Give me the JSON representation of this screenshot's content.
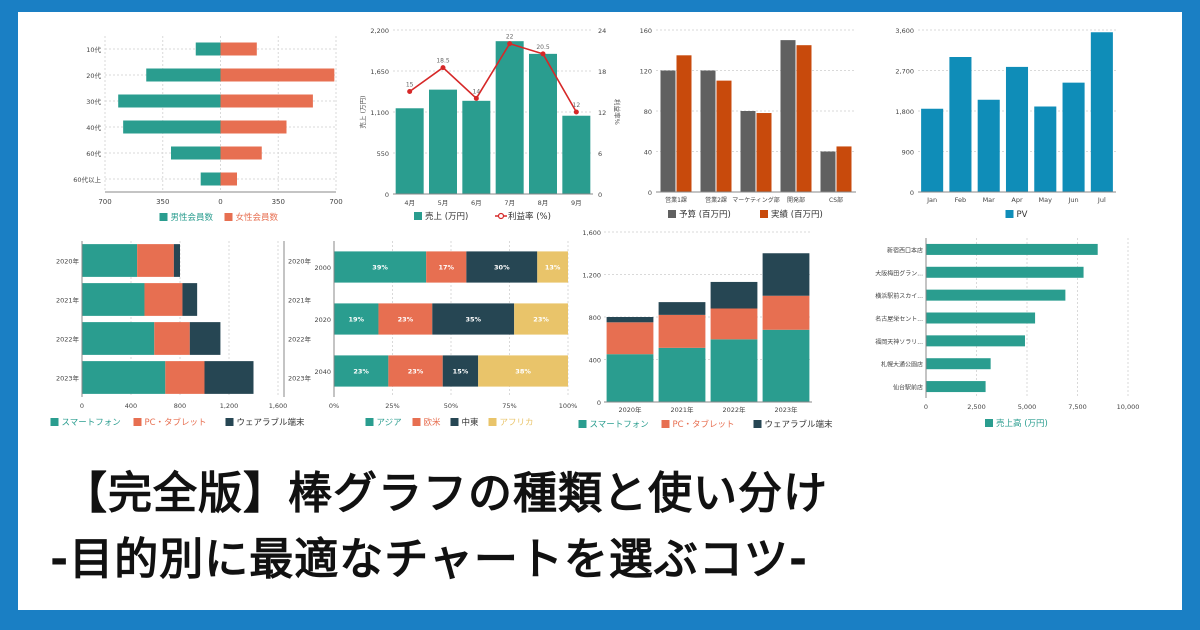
{
  "title": {
    "line1": "【完全版】棒グラフの種類と使い分け",
    "line2": "-目的別に最適なチャートを選ぶコツ-"
  },
  "colors": {
    "teal": "#2a9d8f",
    "coral": "#e76f51",
    "navy": "#264653",
    "sand": "#e9c46a",
    "gray": "#606060",
    "orange": "#c84a0c",
    "blue": "#0f8db8",
    "red": "#d62828",
    "frame": "#1a7fc4"
  },
  "chart_data": [
    {
      "id": "c1",
      "type": "bar",
      "orientation": "horizontal-diverging",
      "categories": [
        "10代",
        "20代",
        "30代",
        "40代",
        "60代",
        "60代以上"
      ],
      "series": [
        {
          "name": "男性会員数",
          "values": [
            150,
            450,
            620,
            590,
            300,
            120
          ]
        },
        {
          "name": "女性会員数",
          "values": [
            220,
            690,
            560,
            400,
            250,
            100
          ]
        }
      ],
      "xlim": [
        -700,
        700
      ],
      "xticks": [
        "700",
        "350",
        "0",
        "350",
        "700"
      ]
    },
    {
      "id": "c2",
      "type": "bar",
      "combo": "bar+line",
      "categories": [
        "4月",
        "5月",
        "6月",
        "7月",
        "8月",
        "9月"
      ],
      "series": [
        {
          "name": "売上 (万円)",
          "type": "bar",
          "values": [
            1150,
            1400,
            1250,
            2050,
            1880,
            1050
          ]
        },
        {
          "name": "利益率 (%)",
          "type": "line",
          "values": [
            15,
            18.5,
            14,
            22,
            20.5,
            12
          ]
        }
      ],
      "point_labels": [
        "15",
        "18.5",
        "14",
        "22",
        "20.5",
        "12"
      ],
      "ylabel": "売上 (万円)",
      "y2label": "利益率%",
      "ylim": [
        0,
        2200
      ],
      "y2lim": [
        0,
        24
      ],
      "yticks": [
        "0",
        "550",
        "1,100",
        "1,650",
        "2,200"
      ],
      "y2ticks": [
        "0",
        "6",
        "12",
        "18",
        "24"
      ]
    },
    {
      "id": "c3",
      "type": "bar",
      "categories": [
        "営業1課",
        "営業2課",
        "マーケティング部",
        "開発部",
        "CS部"
      ],
      "series": [
        {
          "name": "予算 (百万円)",
          "values": [
            120,
            120,
            80,
            150,
            40
          ]
        },
        {
          "name": "実績 (百万円)",
          "values": [
            135,
            110,
            78,
            145,
            45
          ]
        }
      ],
      "ylim": [
        0,
        160
      ],
      "yticks": [
        "0",
        "40",
        "80",
        "120",
        "160"
      ]
    },
    {
      "id": "c4",
      "type": "bar",
      "categories": [
        "Jan",
        "Feb",
        "Mar",
        "Apr",
        "May",
        "Jun",
        "Jul"
      ],
      "series": [
        {
          "name": "PV",
          "values": [
            1850,
            3000,
            2050,
            2780,
            1900,
            2430,
            3550
          ]
        }
      ],
      "ylim": [
        0,
        3600
      ],
      "yticks": [
        "0",
        "900",
        "1,800",
        "2,700",
        "3,600"
      ]
    },
    {
      "id": "c5",
      "type": "bar",
      "orientation": "horizontal-stacked",
      "categories": [
        "2020年",
        "2021年",
        "2022年",
        "2023年"
      ],
      "series": [
        {
          "name": "スマートフォン",
          "values": [
            450,
            510,
            590,
            680
          ]
        },
        {
          "name": "PC・タブレット",
          "values": [
            300,
            310,
            290,
            320
          ]
        },
        {
          "name": "ウェアラブル端末",
          "values": [
            50,
            120,
            250,
            400
          ]
        }
      ],
      "xlim": [
        0,
        1600
      ],
      "xticks": [
        "0",
        "400",
        "800",
        "1,200",
        "1,600"
      ]
    },
    {
      "id": "c6",
      "type": "bar",
      "orientation": "horizontal-100-stacked",
      "categories": [
        "2000",
        "2020",
        "2040"
      ],
      "series": [
        {
          "name": "アジア",
          "values": [
            39,
            19,
            23
          ]
        },
        {
          "name": "欧米",
          "values": [
            17,
            23,
            23
          ]
        },
        {
          "name": "中東",
          "values": [
            30,
            35,
            15
          ]
        },
        {
          "name": "アフリカ",
          "values": [
            13,
            23,
            38
          ]
        }
      ],
      "value_labels": [
        [
          "39%",
          "17%",
          "30%",
          "13%"
        ],
        [
          "19%",
          "23%",
          "35%",
          "23%"
        ],
        [
          "23%",
          "23%",
          "15%",
          "38%"
        ]
      ],
      "xticks": [
        "0%",
        "25%",
        "50%",
        "75%",
        "100%"
      ]
    },
    {
      "id": "c7",
      "type": "bar",
      "orientation": "vertical-stacked",
      "categories": [
        "2020年",
        "2021年",
        "2022年",
        "2023年"
      ],
      "series": [
        {
          "name": "スマートフォン",
          "values": [
            450,
            510,
            590,
            680
          ]
        },
        {
          "name": "PC・タブレット",
          "values": [
            300,
            310,
            290,
            320
          ]
        },
        {
          "name": "ウェアラブル端末",
          "values": [
            50,
            120,
            250,
            400
          ]
        }
      ],
      "ylim": [
        0,
        1600
      ],
      "yticks": [
        "0",
        "400",
        "800",
        "1,200",
        "1,600"
      ]
    },
    {
      "id": "c8",
      "type": "bar",
      "orientation": "horizontal",
      "categories": [
        "新宿西口本店",
        "大阪梅田グラン...",
        "横浜駅前スカイ...",
        "名古屋栄セント...",
        "福岡天神ソラリ...",
        "札幌大通公園店",
        "仙台駅前店"
      ],
      "series": [
        {
          "name": "売上高 (万円)",
          "values": [
            8500,
            7800,
            6900,
            5400,
            4900,
            3200,
            2950
          ]
        }
      ],
      "xlim": [
        0,
        10000
      ],
      "xticks": [
        "0",
        "2,500",
        "5,000",
        "7,500",
        "10,000"
      ]
    }
  ]
}
